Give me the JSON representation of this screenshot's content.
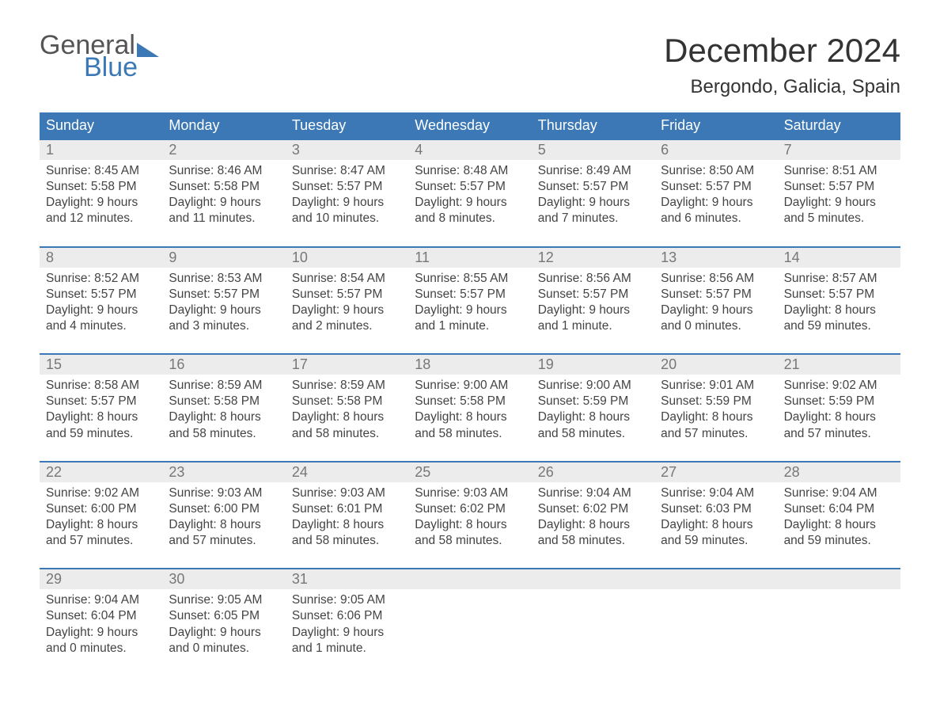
{
  "logo": {
    "text1": "General",
    "text2": "Blue"
  },
  "title": "December 2024",
  "location": "Bergondo, Galicia, Spain",
  "colors": {
    "accent": "#3b78b5",
    "header_bg": "#3b78b5",
    "daynum_bg": "#ececec",
    "text": "#444444",
    "muted": "#777777",
    "background": "#ffffff"
  },
  "weekdays": [
    "Sunday",
    "Monday",
    "Tuesday",
    "Wednesday",
    "Thursday",
    "Friday",
    "Saturday"
  ],
  "weeks": [
    [
      {
        "n": "1",
        "sr": "Sunrise: 8:45 AM",
        "ss": "Sunset: 5:58 PM",
        "d1": "Daylight: 9 hours",
        "d2": "and 12 minutes."
      },
      {
        "n": "2",
        "sr": "Sunrise: 8:46 AM",
        "ss": "Sunset: 5:58 PM",
        "d1": "Daylight: 9 hours",
        "d2": "and 11 minutes."
      },
      {
        "n": "3",
        "sr": "Sunrise: 8:47 AM",
        "ss": "Sunset: 5:57 PM",
        "d1": "Daylight: 9 hours",
        "d2": "and 10 minutes."
      },
      {
        "n": "4",
        "sr": "Sunrise: 8:48 AM",
        "ss": "Sunset: 5:57 PM",
        "d1": "Daylight: 9 hours",
        "d2": "and 8 minutes."
      },
      {
        "n": "5",
        "sr": "Sunrise: 8:49 AM",
        "ss": "Sunset: 5:57 PM",
        "d1": "Daylight: 9 hours",
        "d2": "and 7 minutes."
      },
      {
        "n": "6",
        "sr": "Sunrise: 8:50 AM",
        "ss": "Sunset: 5:57 PM",
        "d1": "Daylight: 9 hours",
        "d2": "and 6 minutes."
      },
      {
        "n": "7",
        "sr": "Sunrise: 8:51 AM",
        "ss": "Sunset: 5:57 PM",
        "d1": "Daylight: 9 hours",
        "d2": "and 5 minutes."
      }
    ],
    [
      {
        "n": "8",
        "sr": "Sunrise: 8:52 AM",
        "ss": "Sunset: 5:57 PM",
        "d1": "Daylight: 9 hours",
        "d2": "and 4 minutes."
      },
      {
        "n": "9",
        "sr": "Sunrise: 8:53 AM",
        "ss": "Sunset: 5:57 PM",
        "d1": "Daylight: 9 hours",
        "d2": "and 3 minutes."
      },
      {
        "n": "10",
        "sr": "Sunrise: 8:54 AM",
        "ss": "Sunset: 5:57 PM",
        "d1": "Daylight: 9 hours",
        "d2": "and 2 minutes."
      },
      {
        "n": "11",
        "sr": "Sunrise: 8:55 AM",
        "ss": "Sunset: 5:57 PM",
        "d1": "Daylight: 9 hours",
        "d2": "and 1 minute."
      },
      {
        "n": "12",
        "sr": "Sunrise: 8:56 AM",
        "ss": "Sunset: 5:57 PM",
        "d1": "Daylight: 9 hours",
        "d2": "and 1 minute."
      },
      {
        "n": "13",
        "sr": "Sunrise: 8:56 AM",
        "ss": "Sunset: 5:57 PM",
        "d1": "Daylight: 9 hours",
        "d2": "and 0 minutes."
      },
      {
        "n": "14",
        "sr": "Sunrise: 8:57 AM",
        "ss": "Sunset: 5:57 PM",
        "d1": "Daylight: 8 hours",
        "d2": "and 59 minutes."
      }
    ],
    [
      {
        "n": "15",
        "sr": "Sunrise: 8:58 AM",
        "ss": "Sunset: 5:57 PM",
        "d1": "Daylight: 8 hours",
        "d2": "and 59 minutes."
      },
      {
        "n": "16",
        "sr": "Sunrise: 8:59 AM",
        "ss": "Sunset: 5:58 PM",
        "d1": "Daylight: 8 hours",
        "d2": "and 58 minutes."
      },
      {
        "n": "17",
        "sr": "Sunrise: 8:59 AM",
        "ss": "Sunset: 5:58 PM",
        "d1": "Daylight: 8 hours",
        "d2": "and 58 minutes."
      },
      {
        "n": "18",
        "sr": "Sunrise: 9:00 AM",
        "ss": "Sunset: 5:58 PM",
        "d1": "Daylight: 8 hours",
        "d2": "and 58 minutes."
      },
      {
        "n": "19",
        "sr": "Sunrise: 9:00 AM",
        "ss": "Sunset: 5:59 PM",
        "d1": "Daylight: 8 hours",
        "d2": "and 58 minutes."
      },
      {
        "n": "20",
        "sr": "Sunrise: 9:01 AM",
        "ss": "Sunset: 5:59 PM",
        "d1": "Daylight: 8 hours",
        "d2": "and 57 minutes."
      },
      {
        "n": "21",
        "sr": "Sunrise: 9:02 AM",
        "ss": "Sunset: 5:59 PM",
        "d1": "Daylight: 8 hours",
        "d2": "and 57 minutes."
      }
    ],
    [
      {
        "n": "22",
        "sr": "Sunrise: 9:02 AM",
        "ss": "Sunset: 6:00 PM",
        "d1": "Daylight: 8 hours",
        "d2": "and 57 minutes."
      },
      {
        "n": "23",
        "sr": "Sunrise: 9:03 AM",
        "ss": "Sunset: 6:00 PM",
        "d1": "Daylight: 8 hours",
        "d2": "and 57 minutes."
      },
      {
        "n": "24",
        "sr": "Sunrise: 9:03 AM",
        "ss": "Sunset: 6:01 PM",
        "d1": "Daylight: 8 hours",
        "d2": "and 58 minutes."
      },
      {
        "n": "25",
        "sr": "Sunrise: 9:03 AM",
        "ss": "Sunset: 6:02 PM",
        "d1": "Daylight: 8 hours",
        "d2": "and 58 minutes."
      },
      {
        "n": "26",
        "sr": "Sunrise: 9:04 AM",
        "ss": "Sunset: 6:02 PM",
        "d1": "Daylight: 8 hours",
        "d2": "and 58 minutes."
      },
      {
        "n": "27",
        "sr": "Sunrise: 9:04 AM",
        "ss": "Sunset: 6:03 PM",
        "d1": "Daylight: 8 hours",
        "d2": "and 59 minutes."
      },
      {
        "n": "28",
        "sr": "Sunrise: 9:04 AM",
        "ss": "Sunset: 6:04 PM",
        "d1": "Daylight: 8 hours",
        "d2": "and 59 minutes."
      }
    ],
    [
      {
        "n": "29",
        "sr": "Sunrise: 9:04 AM",
        "ss": "Sunset: 6:04 PM",
        "d1": "Daylight: 9 hours",
        "d2": "and 0 minutes."
      },
      {
        "n": "30",
        "sr": "Sunrise: 9:05 AM",
        "ss": "Sunset: 6:05 PM",
        "d1": "Daylight: 9 hours",
        "d2": "and 0 minutes."
      },
      {
        "n": "31",
        "sr": "Sunrise: 9:05 AM",
        "ss": "Sunset: 6:06 PM",
        "d1": "Daylight: 9 hours",
        "d2": "and 1 minute."
      },
      null,
      null,
      null,
      null
    ]
  ]
}
